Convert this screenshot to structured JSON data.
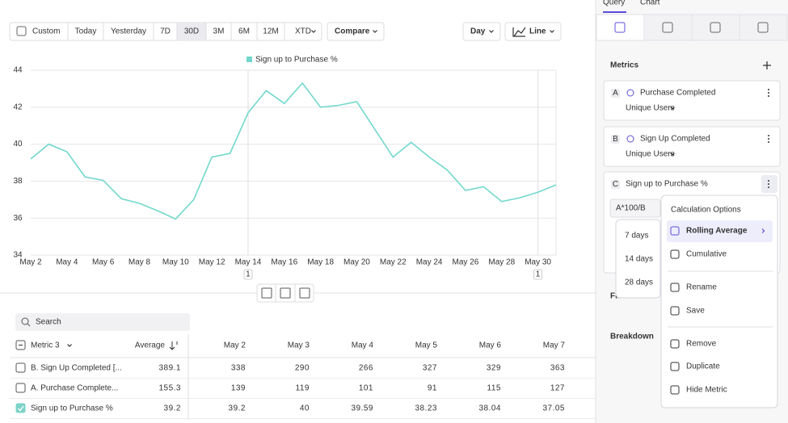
{
  "toolbar": {
    "ranges": [
      "Custom",
      "Today",
      "Yesterday",
      "7D",
      "30D",
      "3M",
      "6M",
      "12M",
      "XTD"
    ],
    "selected_range": "30D",
    "compare": "Compare",
    "interval": "Day",
    "chart_type": "Line"
  },
  "chart_data": {
    "type": "line",
    "categories": [
      "May 2",
      null,
      "May 4",
      null,
      "May 6",
      null,
      "May 8",
      null,
      "May 10",
      null,
      "May 12",
      null,
      "May 14",
      null,
      "May 16",
      null,
      "May 18",
      null,
      "May 20",
      null,
      "May 22",
      null,
      "May 24",
      null,
      "May 26",
      null,
      "May 28",
      null,
      "May 30",
      null
    ],
    "series": [
      {
        "name": "Sign up to Purchase %",
        "color": "#72d8cd",
        "values": [
          39.2,
          40,
          39.59,
          38.23,
          38.04,
          37.05,
          36.8,
          36.4,
          35.95,
          37.0,
          39.3,
          39.5,
          41.7,
          42.9,
          42.2,
          43.3,
          42.0,
          42.1,
          42.3,
          40.8,
          39.3,
          40.1,
          39.3,
          38.6,
          37.5,
          37.7,
          36.9,
          37.1,
          37.4,
          37.8
        ]
      }
    ],
    "ylim": [
      34,
      44
    ],
    "yticks": [
      34,
      36,
      38,
      40,
      42,
      44
    ],
    "grid": true,
    "annotations": [
      {
        "category": "May 14",
        "label": "1"
      },
      {
        "category": "May 30",
        "label": "1"
      }
    ]
  },
  "table": {
    "search_placeholder": "Search",
    "header": {
      "metric": "Metric",
      "count": 3,
      "average": "Average",
      "dates": [
        "May 2",
        "May 3",
        "May 4",
        "May 5",
        "May 6",
        "May 7"
      ]
    },
    "rows": [
      {
        "name": "B. Sign Up Completed [...",
        "checked": false,
        "average": 389.1,
        "values": [
          338,
          290,
          266,
          327,
          329,
          363
        ]
      },
      {
        "name": "A. Purchase Complete...",
        "checked": false,
        "average": 155.3,
        "values": [
          139,
          119,
          101,
          91,
          115,
          127
        ]
      },
      {
        "name": "Sign up to Purchase %",
        "checked": true,
        "average": 39.2,
        "values": [
          39.2,
          40,
          39.59,
          38.23,
          38.04,
          37.05
        ]
      }
    ]
  },
  "sidebar": {
    "tabs": [
      "Query",
      "Chart"
    ],
    "metrics_title": "Metrics",
    "metrics": [
      {
        "letter": "A",
        "name": "Purchase Completed",
        "measure": "Unique Users"
      },
      {
        "letter": "B",
        "name": "Sign Up Completed",
        "measure": "Unique Users"
      },
      {
        "letter": "C",
        "name": "Sign up to Purchase %",
        "formula": "A*100/B"
      }
    ],
    "filter": "Filter",
    "breakdown": "Breakdown"
  },
  "menu": {
    "title": "Calculation Options",
    "items": [
      "Rolling Average",
      "Cumulative",
      "Rename",
      "Save",
      "Remove",
      "Duplicate",
      "Hide Metric"
    ],
    "highlighted": "Rolling Average",
    "submenu": [
      "7 days",
      "14 days",
      "28 days"
    ]
  }
}
